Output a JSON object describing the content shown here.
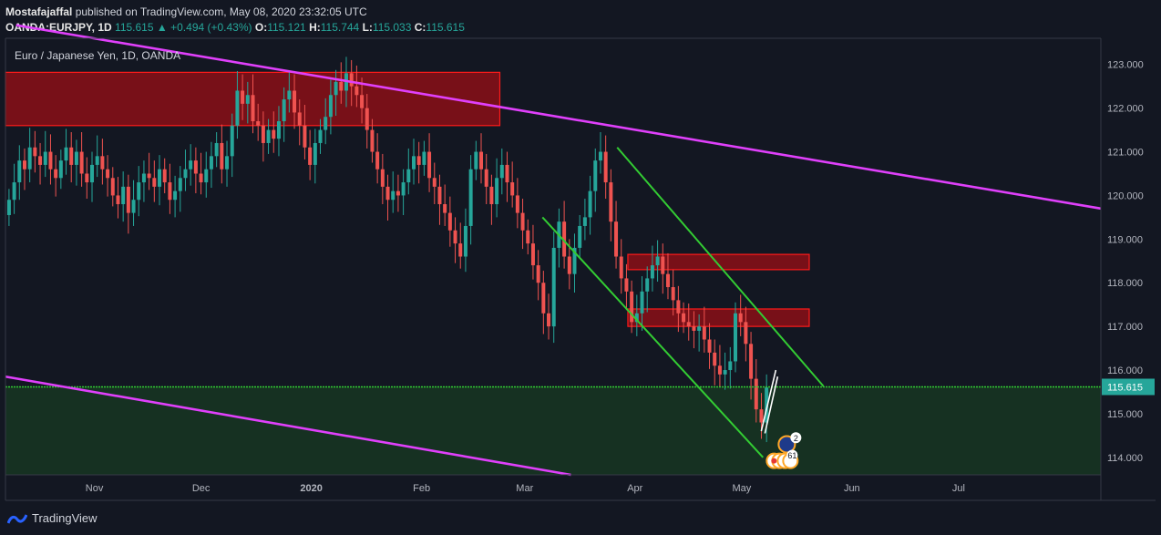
{
  "header": {
    "author": "Mostafajaffal",
    "published_text": "published on TradingView.com, May 08, 2020 23:32:05 UTC",
    "symbol": "OANDA:EURJPY, 1D",
    "last": "115.615",
    "change": "+0.494 (+0.43%)",
    "o_label": "O:",
    "o_value": "115.121",
    "h_label": "H:",
    "h_value": "115.744",
    "l_label": "L:",
    "l_value": "115.033",
    "c_label": "C:",
    "c_value": "115.615"
  },
  "chart_data": {
    "type": "candlestick",
    "title": "Euro / Japanese Yen, 1D, OANDA",
    "y_ticks": [
      "123.000",
      "122.000",
      "121.000",
      "120.000",
      "119.000",
      "118.000",
      "117.000",
      "116.000",
      "115.000",
      "114.000"
    ],
    "y_range": [
      113.6,
      123.6
    ],
    "x_ticks": [
      "Nov",
      "Dec",
      "2020",
      "Feb",
      "Mar",
      "Apr",
      "May",
      "Jun",
      "Jul"
    ],
    "x_tick_dates": [
      "2019-11-01",
      "2019-12-01",
      "2020-01-01",
      "2020-02-01",
      "2020-03-01",
      "2020-04-01",
      "2020-05-01",
      "2020-06-01",
      "2020-07-01"
    ],
    "x_range": [
      "2019-10-07",
      "2020-08-10"
    ],
    "last_price_label": "115.615",
    "colors": {
      "up": "#26a69a",
      "down": "#ef5350",
      "trend_main": "#e040fb",
      "channel": "#33cc33",
      "zone_border": "#ff1a1a",
      "zone_fill": "#8b0f16",
      "support_fill": "#163122"
    },
    "candles_close": [
      119.9,
      120.3,
      120.8,
      120.6,
      121.1,
      120.9,
      120.7,
      121.0,
      120.6,
      120.4,
      120.8,
      121.1,
      120.7,
      121.0,
      120.5,
      120.3,
      120.7,
      120.9,
      120.6,
      120.4,
      120.0,
      119.8,
      120.2,
      119.6,
      119.9,
      120.3,
      120.5,
      120.4,
      120.2,
      120.6,
      120.3,
      119.9,
      120.1,
      120.4,
      120.6,
      120.8,
      120.5,
      120.3,
      120.6,
      120.9,
      121.2,
      120.6,
      120.9,
      121.6,
      122.4,
      122.1,
      122.3,
      121.7,
      121.6,
      121.2,
      121.5,
      121.3,
      121.7,
      122.2,
      122.4,
      121.9,
      121.6,
      121.1,
      120.7,
      121.2,
      121.5,
      121.8,
      122.3,
      122.6,
      122.4,
      122.8,
      122.5,
      122.3,
      122.0,
      121.5,
      121.0,
      120.6,
      120.2,
      119.9,
      120.1,
      120.0,
      120.3,
      120.6,
      120.9,
      120.7,
      121.0,
      120.4,
      120.2,
      119.8,
      119.6,
      119.2,
      118.9,
      118.6,
      119.3,
      120.6,
      121.0,
      120.6,
      120.2,
      119.8,
      120.4,
      120.7,
      120.3,
      120.0,
      119.6,
      119.2,
      118.9,
      118.4,
      118.0,
      117.3,
      117.0,
      118.8,
      119.4,
      118.6,
      118.2,
      118.8,
      119.3,
      119.5,
      120.1,
      120.8,
      121.0,
      120.3,
      119.4,
      118.6,
      118.1,
      117.8,
      117.1,
      117.3,
      117.8,
      118.1,
      118.4,
      118.6,
      118.2,
      117.9,
      117.6,
      117.3,
      117.1,
      117.0,
      116.9,
      117.0,
      116.7,
      116.4,
      116.1,
      115.9,
      116.0,
      116.2,
      117.3,
      117.1,
      116.6,
      115.8,
      115.1,
      114.8,
      115.6
    ],
    "zones": [
      {
        "name": "upper resistance zone",
        "from": "2019-10-07",
        "to": "2020-02-23",
        "low": 121.6,
        "high": 122.82
      },
      {
        "name": "mid resistance zone",
        "from": "2020-03-30",
        "to": "2020-05-20",
        "low": 118.3,
        "high": 118.65
      },
      {
        "name": "lower resistance zone",
        "from": "2020-03-30",
        "to": "2020-05-20",
        "low": 117.0,
        "high": 117.4
      }
    ],
    "support_level": 115.615,
    "trendlines": [
      {
        "name": "upper falling trendline",
        "from": [
          "2019-10-10",
          123.9
        ],
        "to": [
          "2020-08-10",
          119.7
        ]
      },
      {
        "name": "lower falling trendline",
        "from": [
          "2019-10-07",
          115.85
        ],
        "to": [
          "2020-03-14",
          113.6
        ]
      },
      {
        "name": "channel upper line",
        "from": [
          "2020-03-27",
          121.1
        ],
        "to": [
          "2020-05-24",
          115.63
        ]
      },
      {
        "name": "channel lower line",
        "from": [
          "2020-03-06",
          119.5
        ],
        "to": [
          "2020-05-07",
          114.0
        ]
      }
    ],
    "events": [
      {
        "label": "2",
        "color": "#1e3a8a"
      },
      {
        "label": "6",
        "color": "#ffffff"
      },
      {
        "label": "1",
        "color": "#ffffff"
      }
    ]
  },
  "footer": {
    "brand": "TradingView"
  }
}
